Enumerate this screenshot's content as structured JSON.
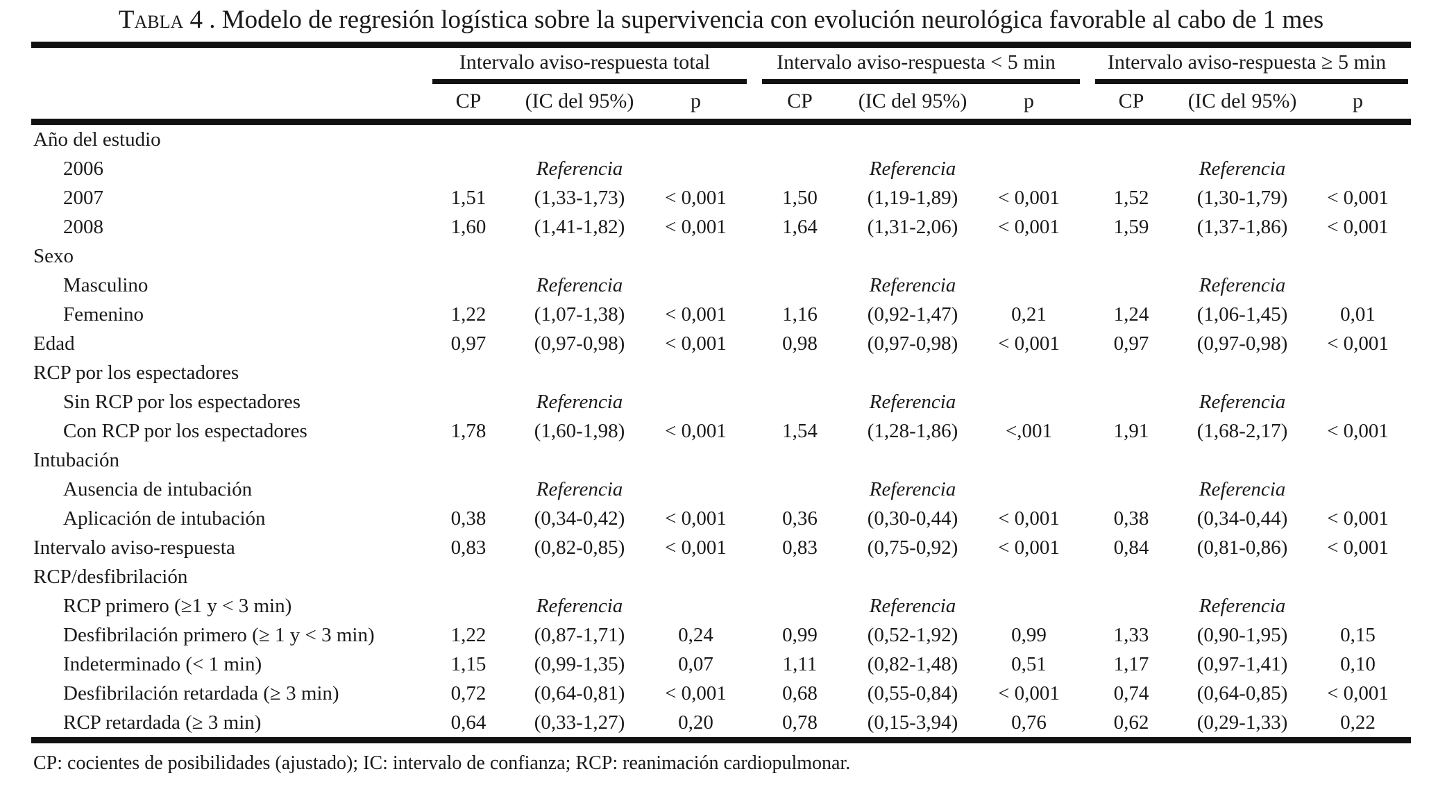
{
  "title": {
    "prefix": "Tabla",
    "rest": "4 . Modelo de regresión logística sobre la supervivencia con evolución neurológica favorable al cabo de 1 mes"
  },
  "header": {
    "groups": [
      {
        "label": "Intervalo aviso-respuesta total"
      },
      {
        "label": "Intervalo aviso-respuesta < 5 min"
      },
      {
        "label": "Intervalo aviso-respuesta ≥ 5 min"
      }
    ],
    "subcolumns": [
      "CP",
      "(IC del 95%)",
      "p"
    ]
  },
  "reference_label": "Referencia",
  "rows": [
    {
      "label": "Año del estudio",
      "indent": 0,
      "type": "section"
    },
    {
      "label": "2006",
      "indent": 1,
      "type": "reference"
    },
    {
      "label": "2007",
      "indent": 1,
      "type": "data",
      "cells": [
        "1,51",
        "(1,33-1,73)",
        "< 0,001",
        "1,50",
        "(1,19-1,89)",
        "< 0,001",
        "1,52",
        "(1,30-1,79)",
        "< 0,001"
      ]
    },
    {
      "label": "2008",
      "indent": 1,
      "type": "data",
      "cells": [
        "1,60",
        "(1,41-1,82)",
        "< 0,001",
        "1,64",
        "(1,31-2,06)",
        "< 0,001",
        "1,59",
        "(1,37-1,86)",
        "< 0,001"
      ]
    },
    {
      "label": "Sexo",
      "indent": 0,
      "type": "section"
    },
    {
      "label": "Masculino",
      "indent": 1,
      "type": "reference"
    },
    {
      "label": "Femenino",
      "indent": 1,
      "type": "data",
      "cells": [
        "1,22",
        "(1,07-1,38)",
        "< 0,001",
        "1,16",
        "(0,92-1,47)",
        "0,21",
        "1,24",
        "(1,06-1,45)",
        "0,01"
      ]
    },
    {
      "label": "Edad",
      "indent": 0,
      "type": "data",
      "cells": [
        "0,97",
        "(0,97-0,98)",
        "< 0,001",
        "0,98",
        "(0,97-0,98)",
        "< 0,001",
        "0,97",
        "(0,97-0,98)",
        "< 0,001"
      ]
    },
    {
      "label": "RCP por los espectadores",
      "indent": 0,
      "type": "section"
    },
    {
      "label": "Sin RCP por los espectadores",
      "indent": 1,
      "type": "reference"
    },
    {
      "label": "Con RCP por los espectadores",
      "indent": 1,
      "type": "data",
      "cells": [
        "1,78",
        "(1,60-1,98)",
        "< 0,001",
        "1,54",
        "(1,28-1,86)",
        "<,001",
        "1,91",
        "(1,68-2,17)",
        "< 0,001"
      ]
    },
    {
      "label": "Intubación",
      "indent": 0,
      "type": "section"
    },
    {
      "label": "Ausencia de intubación",
      "indent": 1,
      "type": "reference"
    },
    {
      "label": "Aplicación de intubación",
      "indent": 1,
      "type": "data",
      "cells": [
        "0,38",
        "(0,34-0,42)",
        "< 0,001",
        "0,36",
        "(0,30-0,44)",
        "< 0,001",
        "0,38",
        "(0,34-0,44)",
        "< 0,001"
      ]
    },
    {
      "label": "Intervalo aviso-respuesta",
      "indent": 0,
      "type": "data",
      "cells": [
        "0,83",
        "(0,82-0,85)",
        "< 0,001",
        "0,83",
        "(0,75-0,92)",
        "< 0,001",
        "0,84",
        "(0,81-0,86)",
        "< 0,001"
      ]
    },
    {
      "label": "RCP/desfibrilación",
      "indent": 0,
      "type": "section"
    },
    {
      "label": "RCP primero (≥1 y < 3 min)",
      "indent": 1,
      "type": "reference"
    },
    {
      "label": "Desfibrilación primero (≥ 1 y < 3 min)",
      "indent": 1,
      "type": "data",
      "cells": [
        "1,22",
        "(0,87-1,71)",
        "0,24",
        "0,99",
        "(0,52-1,92)",
        "0,99",
        "1,33",
        "(0,90-1,95)",
        "0,15"
      ]
    },
    {
      "label": "Indeterminado (< 1 min)",
      "indent": 1,
      "type": "data",
      "cells": [
        "1,15",
        "(0,99-1,35)",
        "0,07",
        "1,11",
        "(0,82-1,48)",
        "0,51",
        "1,17",
        "(0,97-1,41)",
        "0,10"
      ]
    },
    {
      "label": "Desfibrilación retardada (≥ 3 min)",
      "indent": 1,
      "type": "data",
      "cells": [
        "0,72",
        "(0,64-0,81)",
        "< 0,001",
        "0,68",
        "(0,55-0,84)",
        "< 0,001",
        "0,74",
        "(0,64-0,85)",
        "< 0,001"
      ]
    },
    {
      "label": "RCP retardada (≥ 3 min)",
      "indent": 1,
      "type": "data",
      "cells": [
        "0,64",
        "(0,33-1,27)",
        "0,20",
        "0,78",
        "(0,15-3,94)",
        "0,76",
        "0,62",
        "(0,29-1,33)",
        "0,22"
      ]
    }
  ],
  "footnote": "CP: cocientes de posibilidades (ajustado); IC: intervalo de confianza; RCP: reanimación cardiopulmonar."
}
